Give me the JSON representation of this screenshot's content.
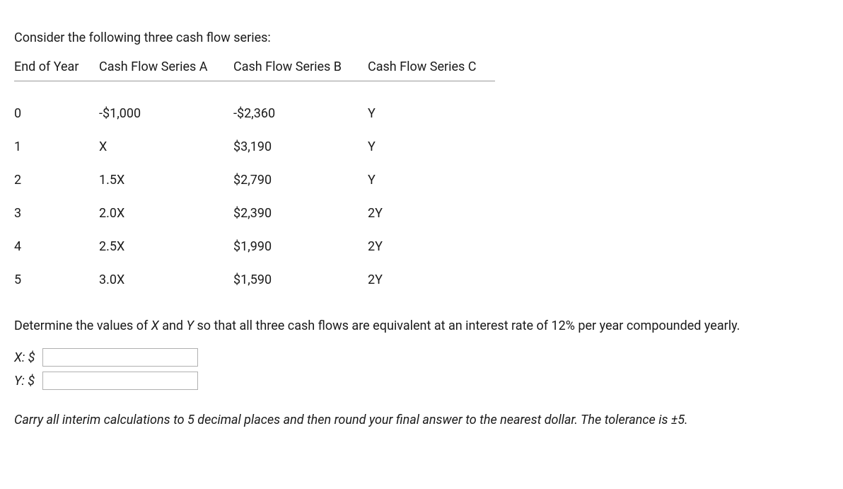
{
  "intro": "Consider the following three cash flow series:",
  "table": {
    "headers": [
      "End of Year",
      "Cash Flow Series A",
      "Cash Flow Series B",
      "Cash Flow Series C"
    ],
    "rows": [
      [
        "0",
        "-$1,000",
        "-$2,360",
        "Y"
      ],
      [
        "1",
        "X",
        "$3,190",
        "Y"
      ],
      [
        "2",
        "1.5X",
        "$2,790",
        "Y"
      ],
      [
        "3",
        "2.0X",
        "$2,390",
        "2Y"
      ],
      [
        "4",
        "2.5X",
        "$1,990",
        "2Y"
      ],
      [
        "5",
        "3.0X",
        "$1,590",
        "2Y"
      ]
    ]
  },
  "question_pre": "Determine the values of ",
  "question_x": "X",
  "question_mid": " and ",
  "question_y": "Y",
  "question_post": " so that all three cash flows are equivalent at an interest rate of 12% per year compounded yearly.",
  "inputs": {
    "x_label": "X: $",
    "y_label": "Y: $"
  },
  "note": "Carry all interim calculations to 5 decimal places and then round your final answer to the nearest dollar. The tolerance is ±5."
}
